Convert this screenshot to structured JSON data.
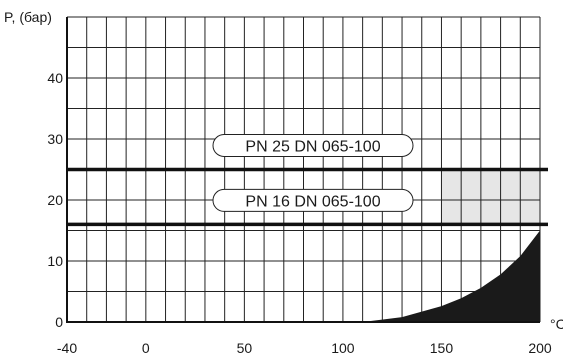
{
  "chart_data": {
    "type": "line",
    "ylabel": "P, (бар)",
    "xlabel": "°C",
    "xlim": [
      -40,
      200
    ],
    "ylim": [
      0,
      50
    ],
    "x_ticks": [
      -40,
      0,
      50,
      100,
      150,
      200
    ],
    "x_tick_labels": [
      "-40",
      "0",
      "50",
      "100",
      "150",
      "200"
    ],
    "y_ticks": [
      0,
      10,
      20,
      30,
      40
    ],
    "y_tick_labels": [
      "0",
      "10",
      "20",
      "30",
      "40"
    ],
    "grid": true,
    "series": [
      {
        "name": "PN 25 DN 065-100",
        "x": [
          -40,
          200
        ],
        "y": [
          25,
          25
        ]
      },
      {
        "name": "PN 16 DN 065-100",
        "x": [
          -40,
          200
        ],
        "y": [
          16,
          16
        ]
      }
    ],
    "shaded_region": {
      "x": [
        150,
        200
      ],
      "y": [
        16,
        25
      ],
      "color": "#e6e6e6"
    },
    "filled_area": {
      "x": [
        110,
        130,
        150,
        160,
        170,
        180,
        190,
        200
      ],
      "y": [
        0,
        0.8,
        2.6,
        3.9,
        5.6,
        7.8,
        10.8,
        15
      ],
      "color": "#1a1a1a"
    }
  }
}
